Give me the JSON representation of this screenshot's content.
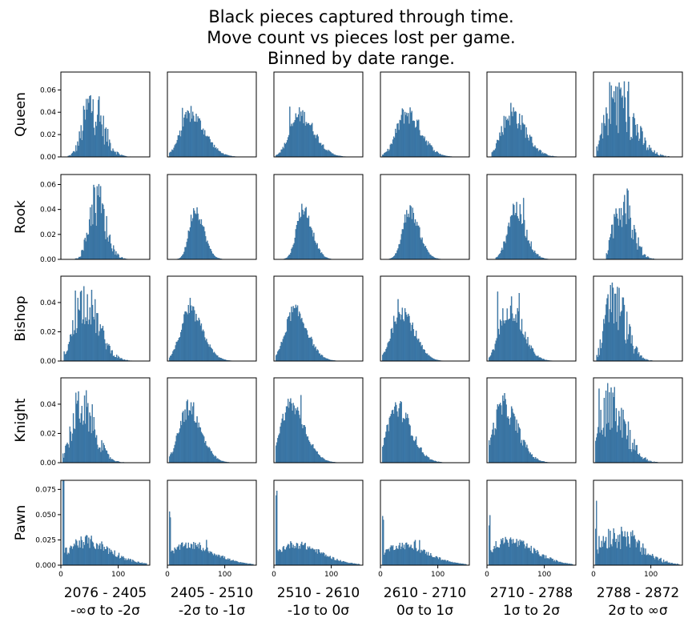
{
  "chart_data": {
    "type": "bar",
    "title_lines": [
      "Black  pieces  captured through time.",
      "Move count vs pieces lost per game.",
      "Binned by date range."
    ],
    "rows": [
      "Queen",
      "Rook",
      "Bishop",
      "Knight",
      "Pawn"
    ],
    "columns": [
      {
        "range": "2076 - 2405",
        "sigma": "-∞σ to -2σ"
      },
      {
        "range": "2405 - 2510",
        "sigma": "-2σ to -1σ"
      },
      {
        "range": "2510 - 2610",
        "sigma": "-1σ to 0σ"
      },
      {
        "range": "2610 - 2710",
        "sigma": "0σ to 1σ"
      },
      {
        "range": "2710 - 2788",
        "sigma": "1σ to 2σ"
      },
      {
        "range": "2788 - 2872",
        "sigma": "2σ to ∞σ"
      }
    ],
    "xlim": [
      0,
      155
    ],
    "x_ticks": [
      0,
      100
    ],
    "y_axes": [
      {
        "row": "Queen",
        "ylim": [
          0,
          0.076
        ],
        "ticks": [
          0.0,
          0.02,
          0.04,
          0.06
        ],
        "tick_labels": [
          "0.00",
          "0.02",
          "0.04",
          "0.06"
        ]
      },
      {
        "row": "Rook",
        "ylim": [
          0,
          0.068
        ],
        "ticks": [
          0.0,
          0.02,
          0.04,
          0.06
        ],
        "tick_labels": [
          "0.00",
          "0.02",
          "0.04",
          "0.06"
        ]
      },
      {
        "row": "Bishop",
        "ylim": [
          0,
          0.058
        ],
        "ticks": [
          0.0,
          0.02,
          0.04
        ],
        "tick_labels": [
          "0.00",
          "0.02",
          "0.04"
        ]
      },
      {
        "row": "Knight",
        "ylim": [
          0,
          0.058
        ],
        "ticks": [
          0.0,
          0.02,
          0.04
        ],
        "tick_labels": [
          "0.00",
          "0.02",
          "0.04"
        ]
      },
      {
        "row": "Pawn",
        "ylim": [
          0,
          0.084
        ],
        "ticks": [
          0.0,
          0.025,
          0.05,
          0.075
        ],
        "tick_labels": [
          "0.000",
          "0.025",
          "0.050",
          "0.075"
        ]
      }
    ],
    "bin_width": 1.5,
    "histograms": [
      [
        {
          "peak": 52,
          "spread": 18,
          "max": 0.058,
          "noise": 0.55,
          "start": 12,
          "end": 150
        },
        {
          "peak": 40,
          "spread": 22,
          "max": 0.048,
          "noise": 0.2,
          "start": 3,
          "end": 150
        },
        {
          "peak": 45,
          "spread": 22,
          "max": 0.048,
          "noise": 0.2,
          "start": 3,
          "end": 150
        },
        {
          "peak": 45,
          "spread": 22,
          "max": 0.05,
          "noise": 0.25,
          "start": 3,
          "end": 150
        },
        {
          "peak": 42,
          "spread": 22,
          "max": 0.05,
          "noise": 0.3,
          "start": 8,
          "end": 150
        },
        {
          "peak": 40,
          "spread": 25,
          "max": 0.068,
          "noise": 0.6,
          "start": 5,
          "end": 135
        }
      ],
      [
        {
          "peak": 60,
          "spread": 15,
          "max": 0.062,
          "noise": 0.45,
          "start": 25,
          "end": 150
        },
        {
          "peak": 48,
          "spread": 13,
          "max": 0.052,
          "noise": 0.15,
          "start": 15,
          "end": 150
        },
        {
          "peak": 50,
          "spread": 14,
          "max": 0.052,
          "noise": 0.15,
          "start": 15,
          "end": 150
        },
        {
          "peak": 50,
          "spread": 15,
          "max": 0.05,
          "noise": 0.15,
          "start": 15,
          "end": 150
        },
        {
          "peak": 48,
          "spread": 16,
          "max": 0.052,
          "noise": 0.25,
          "start": 15,
          "end": 150
        },
        {
          "peak": 48,
          "spread": 16,
          "max": 0.06,
          "noise": 0.5,
          "start": 22,
          "end": 150
        }
      ],
      [
        {
          "peak": 40,
          "spread": 22,
          "max": 0.053,
          "noise": 0.4,
          "start": 5,
          "end": 150
        },
        {
          "peak": 38,
          "spread": 20,
          "max": 0.044,
          "noise": 0.15,
          "start": 3,
          "end": 150
        },
        {
          "peak": 35,
          "spread": 20,
          "max": 0.044,
          "noise": 0.15,
          "start": 3,
          "end": 150
        },
        {
          "peak": 35,
          "spread": 20,
          "max": 0.045,
          "noise": 0.2,
          "start": 3,
          "end": 150
        },
        {
          "peak": 38,
          "spread": 20,
          "max": 0.048,
          "noise": 0.25,
          "start": 3,
          "end": 150
        },
        {
          "peak": 35,
          "spread": 18,
          "max": 0.055,
          "noise": 0.55,
          "start": 5,
          "end": 120
        }
      ],
      [
        {
          "peak": 35,
          "spread": 20,
          "max": 0.051,
          "noise": 0.45,
          "start": 3,
          "end": 150
        },
        {
          "peak": 35,
          "spread": 20,
          "max": 0.046,
          "noise": 0.2,
          "start": 3,
          "end": 150
        },
        {
          "peak": 28,
          "spread": 22,
          "max": 0.051,
          "noise": 0.15,
          "start": 3,
          "end": 150
        },
        {
          "peak": 28,
          "spread": 22,
          "max": 0.048,
          "noise": 0.2,
          "start": 3,
          "end": 150
        },
        {
          "peak": 28,
          "spread": 22,
          "max": 0.049,
          "noise": 0.25,
          "start": 3,
          "end": 150
        },
        {
          "peak": 30,
          "spread": 22,
          "max": 0.055,
          "noise": 0.55,
          "start": 3,
          "end": 130
        }
      ],
      [
        {
          "peak": 40,
          "spread": 40,
          "max": 0.03,
          "noise": 0.3,
          "start": 3,
          "end": 150,
          "spike": 0.078
        },
        {
          "peak": 35,
          "spread": 40,
          "max": 0.025,
          "noise": 0.2,
          "start": 3,
          "end": 150,
          "spike": 0.047
        },
        {
          "peak": 35,
          "spread": 40,
          "max": 0.026,
          "noise": 0.2,
          "start": 3,
          "end": 150,
          "spike": 0.062
        },
        {
          "peak": 35,
          "spread": 40,
          "max": 0.025,
          "noise": 0.2,
          "start": 3,
          "end": 150,
          "spike": 0.05
        },
        {
          "peak": 35,
          "spread": 40,
          "max": 0.03,
          "noise": 0.25,
          "start": 3,
          "end": 150,
          "spike": 0.049
        },
        {
          "peak": 35,
          "spread": 38,
          "max": 0.038,
          "noise": 0.45,
          "start": 3,
          "end": 150,
          "spike": 0.045
        }
      ]
    ],
    "colors": {
      "bar": "#3d7fb3",
      "edge": "#2f5f86"
    }
  }
}
